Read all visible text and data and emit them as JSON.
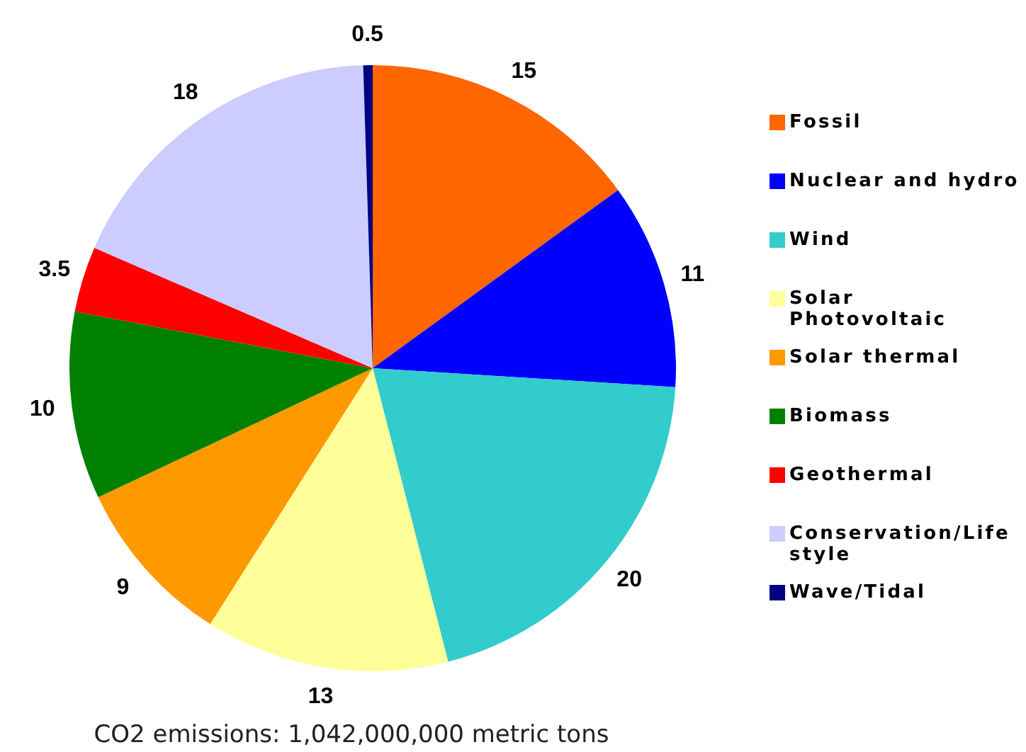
{
  "chart_data": {
    "type": "pie",
    "categories": [
      "Fossil",
      "Nuclear and hydro",
      "Wind",
      "Solar Photovoltaic",
      "Solar thermal",
      "Biomass",
      "Geothermal",
      "Conservation/Life style",
      "Wave/Tidal"
    ],
    "values": [
      15,
      11,
      20,
      13,
      9,
      10,
      3.5,
      18,
      0.5
    ],
    "colors": [
      "#ff6600",
      "#0000ff",
      "#33cccc",
      "#ffff99",
      "#ff9900",
      "#008000",
      "#ff0000",
      "#ccccff",
      "#000080"
    ],
    "data_labels": true,
    "legend": "right",
    "annotations": [
      "CO2 emissions: 1,042,000,000 metric tons"
    ]
  }
}
